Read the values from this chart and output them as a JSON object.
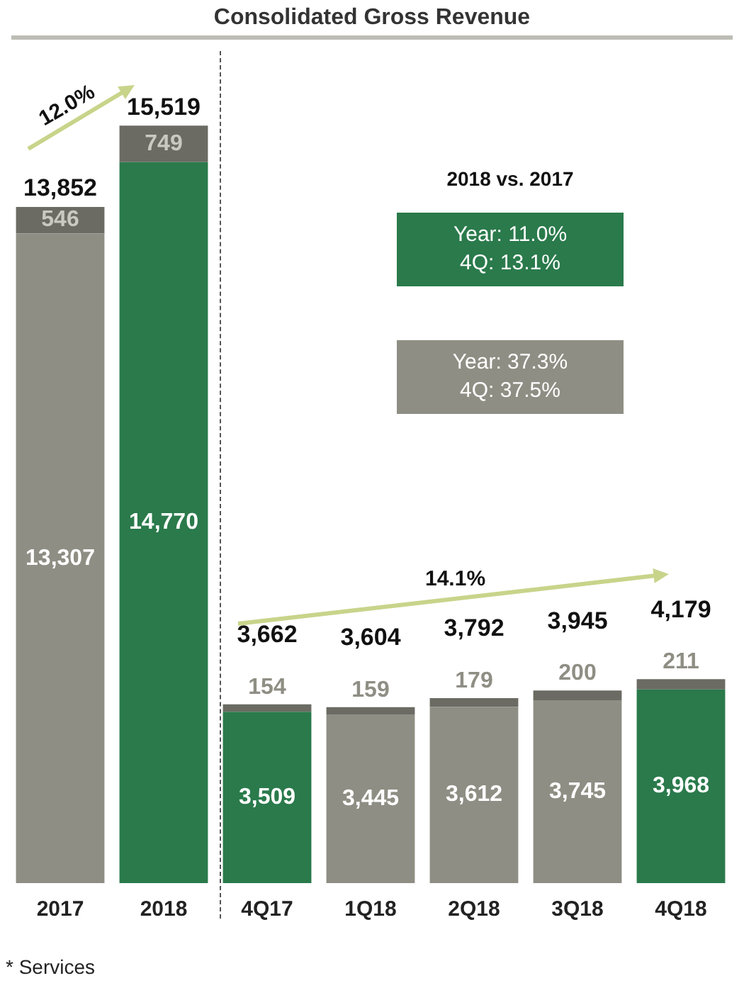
{
  "chart_data": {
    "type": "bar",
    "title": "Consolidated Gross Revenue",
    "stacked": true,
    "categories": [
      "2017",
      "2018",
      "4Q17",
      "1Q18",
      "2Q18",
      "3Q18",
      "4Q18"
    ],
    "series": [
      {
        "colors": [
          "#8f8e84",
          "#2a7a4b",
          "#2a7a4b",
          "#8f8e84",
          "#8f8e84",
          "#8f8e84",
          "#2a7a4b"
        ],
        "values": [
          13307,
          14770,
          3509,
          3445,
          3612,
          3745,
          3968
        ],
        "value_labels": [
          "13,307",
          "14,770",
          "3,509",
          "3,445",
          "3,612",
          "3,745",
          "3,968"
        ]
      },
      {
        "color": "#6b6b63",
        "values": [
          546,
          749,
          154,
          159,
          179,
          200,
          211
        ],
        "value_labels": [
          "546",
          "749",
          "154",
          "159",
          "179",
          "200",
          "211"
        ]
      }
    ],
    "totals": [
      "13,852",
      "15,519",
      "3,662",
      "3,604",
      "3,792",
      "3,945",
      "4,179"
    ],
    "annotations": [
      "12.0%",
      "14.1%",
      "2018 vs. 2017",
      "Year: 11.0%",
      "4Q: 13.1%",
      "Year: 37.3%",
      "4Q: 37.5%",
      "* Services"
    ],
    "grid": false,
    "legend": false
  }
}
